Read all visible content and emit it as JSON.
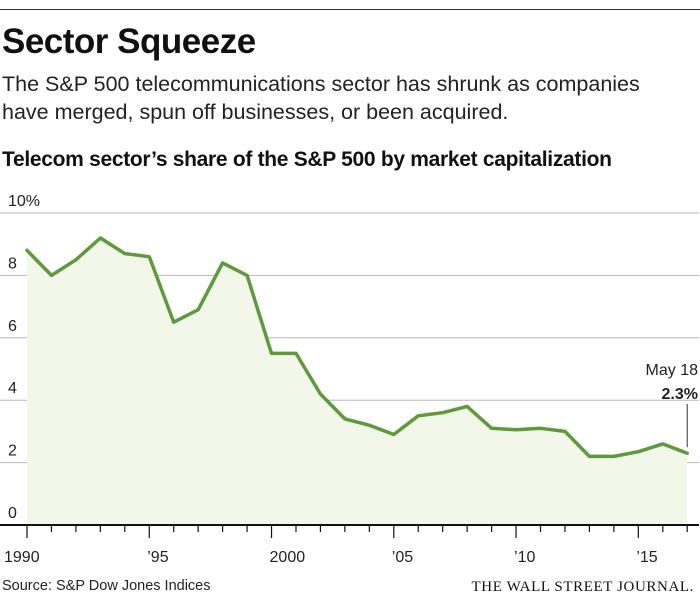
{
  "header": {
    "title": "Sector Squeeze",
    "dek": "The S&P 500 telecommunications sector has shrunk as companies have merged, spun off businesses, or been acquired."
  },
  "footer": {
    "source": "Source: S&P Dow Jones Indices",
    "credit": "THE WALL STREET JOURNAL."
  },
  "colors": {
    "line": "#5e9a3b",
    "area": "#f3f7ea",
    "grid": "#b8b8b8",
    "axis": "#111111"
  },
  "chart_data": {
    "type": "area",
    "title": "Telecom sector’s share of the S&P 500 by market capitalization",
    "xlabel": "",
    "ylabel": "",
    "x": [
      1990,
      1991,
      1992,
      1993,
      1994,
      1995,
      1996,
      1997,
      1998,
      1999,
      2000,
      2001,
      2002,
      2003,
      2004,
      2005,
      2006,
      2007,
      2008,
      2009,
      2010,
      2011,
      2012,
      2013,
      2014,
      2015,
      2016,
      2017
    ],
    "series": [
      {
        "values": [
          8.8,
          8.0,
          8.5,
          9.2,
          8.7,
          8.6,
          6.5,
          6.9,
          8.4,
          8.0,
          5.5,
          5.5,
          4.2,
          3.4,
          3.2,
          2.9,
          3.5,
          3.6,
          3.8,
          3.1,
          3.05,
          3.1,
          3.0,
          2.2,
          2.2,
          2.35,
          2.6,
          2.3
        ]
      }
    ],
    "xlim": [
      1990,
      2017.4
    ],
    "ylim": [
      0,
      10
    ],
    "y_ticks": [
      0,
      2,
      4,
      6,
      8,
      10
    ],
    "y_tick_labels": [
      "0",
      "2",
      "4",
      "6",
      "8",
      "10%"
    ],
    "x_ticks": [
      1990,
      1995,
      2000,
      2005,
      2010,
      2015
    ],
    "x_tick_labels": [
      "1990",
      "’95",
      "2000",
      "’05",
      "’10",
      "’15"
    ],
    "grid": true,
    "annotation": {
      "x": 2017,
      "y": 2.3,
      "label": "May 18",
      "value": "2.3%"
    }
  }
}
